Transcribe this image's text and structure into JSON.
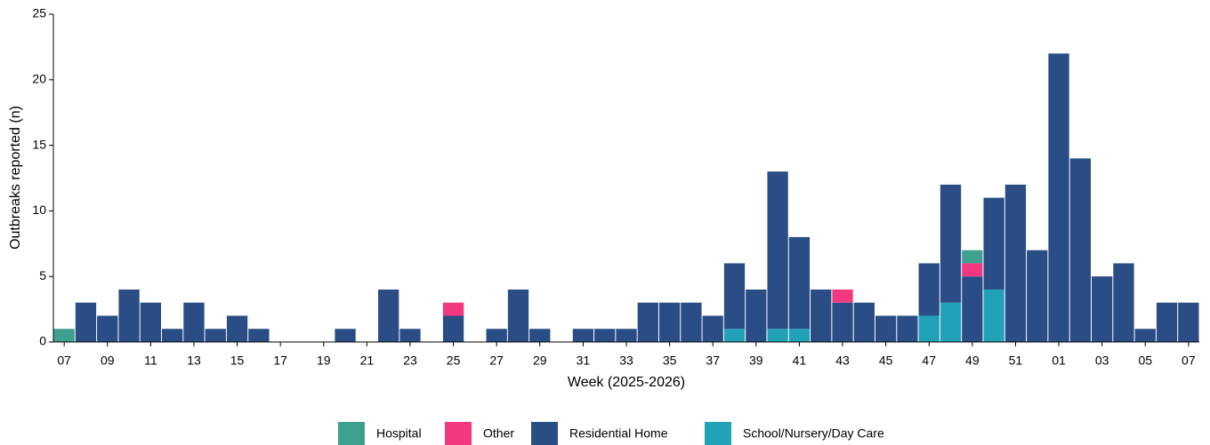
{
  "chart_data": {
    "type": "stacked_bar",
    "x_label": "Week (2025-2026)",
    "y_label": "Outbreaks reported (n)",
    "categories": [
      "07",
      null,
      "09",
      null,
      "11",
      null,
      "13",
      null,
      "15",
      null,
      "17",
      null,
      "19",
      null,
      "21",
      null,
      "23",
      null,
      "25",
      null,
      "27",
      null,
      "29",
      null,
      "31",
      null,
      "33",
      null,
      "35",
      null,
      "37",
      null,
      "39",
      null,
      "41",
      null,
      "43",
      null,
      "45",
      null,
      "47",
      null,
      "49",
      null,
      "51",
      null,
      "01",
      null,
      "03",
      null,
      "05",
      null,
      "07"
    ],
    "series": [
      {
        "name": "Hospital",
        "color": "#3fa08f",
        "values": [
          1,
          0,
          0,
          0,
          0,
          0,
          0,
          0,
          0,
          0,
          0,
          0,
          0,
          0,
          0,
          0,
          0,
          0,
          0,
          0,
          0,
          0,
          0,
          0,
          0,
          0,
          0,
          0,
          0,
          0,
          0,
          0,
          0,
          0,
          0,
          0,
          0,
          0,
          0,
          0,
          0,
          0,
          1,
          0,
          0,
          0,
          0,
          0,
          0,
          0,
          0,
          0,
          0
        ]
      },
      {
        "name": "Other",
        "color": "#f2397f",
        "values": [
          0,
          0,
          0,
          0,
          0,
          0,
          0,
          0,
          0,
          0,
          0,
          0,
          0,
          0,
          0,
          0,
          0,
          0,
          1,
          0,
          0,
          0,
          0,
          0,
          0,
          0,
          0,
          0,
          0,
          0,
          0,
          0,
          0,
          0,
          0,
          0,
          1,
          0,
          0,
          0,
          0,
          0,
          1,
          0,
          0,
          0,
          0,
          0,
          0,
          0,
          0,
          0,
          0
        ]
      },
      {
        "name": "Residential Home",
        "color": "#2a4d85",
        "values": [
          0,
          3,
          2,
          4,
          3,
          1,
          3,
          1,
          2,
          1,
          0,
          0,
          0,
          1,
          0,
          4,
          1,
          0,
          2,
          0,
          1,
          4,
          1,
          0,
          1,
          1,
          1,
          3,
          3,
          3,
          2,
          5,
          4,
          12,
          7,
          4,
          3,
          3,
          2,
          2,
          4,
          9,
          5,
          7,
          12,
          7,
          22,
          14,
          5,
          6,
          1,
          3,
          3
        ]
      },
      {
        "name": "School/Nursery/Day Care",
        "color": "#22a2b8",
        "values": [
          0,
          0,
          0,
          0,
          0,
          0,
          0,
          0,
          0,
          0,
          0,
          0,
          0,
          0,
          0,
          0,
          0,
          0,
          0,
          0,
          0,
          0,
          0,
          0,
          0,
          0,
          0,
          0,
          0,
          0,
          0,
          1,
          0,
          1,
          1,
          0,
          0,
          0,
          0,
          0,
          2,
          3,
          0,
          4,
          0,
          0,
          0,
          0,
          0,
          0,
          0,
          0,
          0
        ]
      }
    ],
    "ylim": [
      0,
      25
    ],
    "yticks": [
      0,
      5,
      10,
      15,
      20,
      25
    ]
  }
}
